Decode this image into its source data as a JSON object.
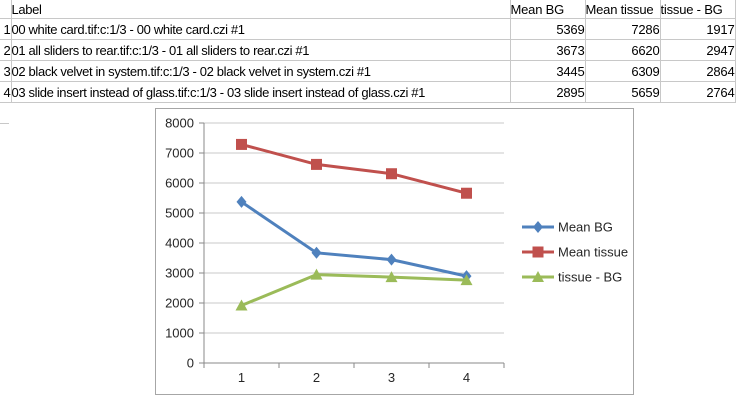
{
  "table": {
    "header": {
      "label": "Label",
      "mean_bg": "Mean BG",
      "mean_tissue": "Mean tissue",
      "tissue_bg": "tissue - BG"
    },
    "rows": [
      {
        "num": "1",
        "label": "00 white card.tif:c:1/3 - 00 white card.czi #1",
        "mean_bg": "5369",
        "mean_tissue": "7286",
        "tissue_bg": "1917"
      },
      {
        "num": "2",
        "label": "01 all sliders to rear.tif:c:1/3 - 01 all sliders to rear.czi #1",
        "mean_bg": "3673",
        "mean_tissue": "6620",
        "tissue_bg": "2947"
      },
      {
        "num": "3",
        "label": "02 black velvet in system.tif:c:1/3 - 02 black velvet in system.czi #1",
        "mean_bg": "3445",
        "mean_tissue": "6309",
        "tissue_bg": "2864"
      },
      {
        "num": "4",
        "label": "03 slide insert instead of glass.tif:c:1/3 - 03 slide insert instead of glass.czi #1",
        "mean_bg": "2895",
        "mean_tissue": "5659",
        "tissue_bg": "2764"
      }
    ]
  },
  "chart_data": {
    "type": "line",
    "categories": [
      "1",
      "2",
      "3",
      "4"
    ],
    "series": [
      {
        "name": "Mean BG",
        "values": [
          5369,
          3673,
          3445,
          2895
        ],
        "color": "#4F81BD",
        "marker": "diamond"
      },
      {
        "name": "Mean tissue",
        "values": [
          7286,
          6620,
          6309,
          5659
        ],
        "color": "#C0504D",
        "marker": "square"
      },
      {
        "name": "tissue - BG",
        "values": [
          1917,
          2947,
          2864,
          2764
        ],
        "color": "#9BBB59",
        "marker": "triangle"
      }
    ],
    "title": "",
    "xlabel": "",
    "ylabel": "",
    "ylim": [
      0,
      8000
    ],
    "ytick_step": 1000,
    "ytick_labels": [
      "0",
      "1000",
      "2000",
      "3000",
      "4000",
      "5000",
      "6000",
      "7000",
      "8000"
    ],
    "grid": true,
    "legend_position": "right",
    "colors": {
      "axis": "#898989",
      "gridline": "#c9c9c9",
      "text": "#262626",
      "chart_border": "#a6a6a6",
      "table_gridline": "#c8c8c8"
    }
  }
}
